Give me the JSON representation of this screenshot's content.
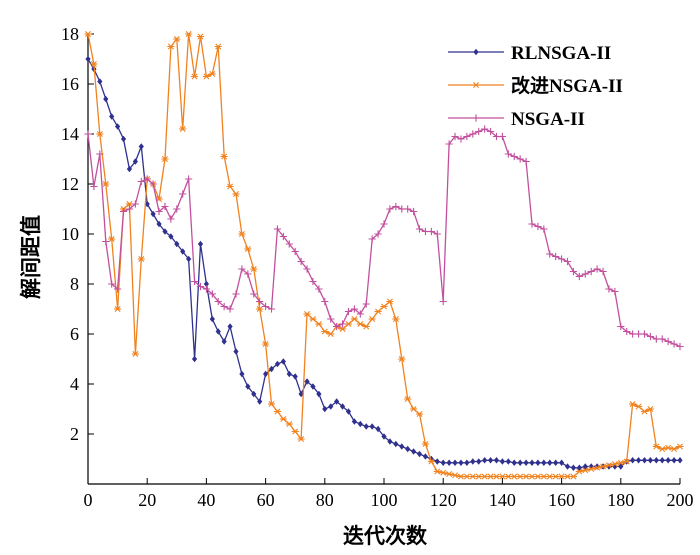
{
  "chart_data": {
    "type": "line",
    "title": "",
    "xlabel": "迭代次数",
    "ylabel": "解间距值",
    "xlim": [
      0,
      200
    ],
    "ylim": [
      0,
      18
    ],
    "xticks": [
      0,
      20,
      40,
      60,
      80,
      100,
      120,
      140,
      160,
      180,
      200
    ],
    "yticks": [
      2,
      4,
      6,
      8,
      10,
      12,
      14,
      16,
      18
    ],
    "grid": false,
    "legend_position": "top-right",
    "axis_color": "#000000",
    "x": [
      0,
      2,
      4,
      6,
      8,
      10,
      12,
      14,
      16,
      18,
      20,
      22,
      24,
      26,
      28,
      30,
      32,
      34,
      36,
      38,
      40,
      42,
      44,
      46,
      48,
      50,
      52,
      54,
      56,
      58,
      60,
      62,
      64,
      66,
      68,
      70,
      72,
      74,
      76,
      78,
      80,
      82,
      84,
      86,
      88,
      90,
      92,
      94,
      96,
      98,
      100,
      102,
      104,
      106,
      108,
      110,
      112,
      114,
      116,
      118,
      120,
      122,
      124,
      126,
      128,
      130,
      132,
      134,
      136,
      138,
      140,
      142,
      144,
      146,
      148,
      150,
      152,
      154,
      156,
      158,
      160,
      162,
      164,
      166,
      168,
      170,
      172,
      174,
      176,
      178,
      180,
      182,
      184,
      186,
      188,
      190,
      192,
      194,
      196,
      198,
      200
    ],
    "series": [
      {
        "name": "RLNSGA-II",
        "color": "#30318f",
        "marker": "diamond",
        "values": [
          17.0,
          16.6,
          16.1,
          15.4,
          14.7,
          14.3,
          13.8,
          12.6,
          12.9,
          13.5,
          11.2,
          10.8,
          10.4,
          10.1,
          9.9,
          9.6,
          9.3,
          9.0,
          5.0,
          9.6,
          8.0,
          6.6,
          6.1,
          5.7,
          6.3,
          5.3,
          4.4,
          3.9,
          3.6,
          3.3,
          4.4,
          4.6,
          4.8,
          4.9,
          4.4,
          4.3,
          3.6,
          4.1,
          3.9,
          3.6,
          3.0,
          3.1,
          3.3,
          3.1,
          2.9,
          2.5,
          2.4,
          2.3,
          2.3,
          2.2,
          1.9,
          1.7,
          1.6,
          1.5,
          1.4,
          1.3,
          1.2,
          1.1,
          1.0,
          0.9,
          0.85,
          0.85,
          0.85,
          0.85,
          0.85,
          0.9,
          0.9,
          0.95,
          0.95,
          0.95,
          0.9,
          0.9,
          0.85,
          0.85,
          0.85,
          0.85,
          0.85,
          0.85,
          0.85,
          0.85,
          0.85,
          0.7,
          0.65,
          0.65,
          0.7,
          0.7,
          0.7,
          0.7,
          0.7,
          0.7,
          0.7,
          0.9,
          0.95,
          0.95,
          0.95,
          0.95,
          0.95,
          0.95,
          0.95,
          0.95,
          0.95
        ]
      },
      {
        "name": "改进NSGA-II",
        "color": "#f0821f",
        "marker": "asterisk",
        "values": [
          18.0,
          16.8,
          14.0,
          12.0,
          9.8,
          7.0,
          11.0,
          11.2,
          5.2,
          9.0,
          12.2,
          12.0,
          11.4,
          13.0,
          17.5,
          17.8,
          14.2,
          18.0,
          16.3,
          17.9,
          16.3,
          16.4,
          17.5,
          13.1,
          11.9,
          11.6,
          10.0,
          9.4,
          8.6,
          7.0,
          5.6,
          3.2,
          2.9,
          2.6,
          2.4,
          2.1,
          1.8,
          6.8,
          6.6,
          6.4,
          6.1,
          6.0,
          6.3,
          6.2,
          6.4,
          6.6,
          6.4,
          6.3,
          6.6,
          6.9,
          7.1,
          7.3,
          6.6,
          5.0,
          3.4,
          3.0,
          2.8,
          1.6,
          0.9,
          0.5,
          0.45,
          0.4,
          0.35,
          0.3,
          0.3,
          0.3,
          0.3,
          0.3,
          0.3,
          0.3,
          0.3,
          0.3,
          0.3,
          0.3,
          0.3,
          0.3,
          0.3,
          0.3,
          0.3,
          0.3,
          0.3,
          0.3,
          0.3,
          0.5,
          0.55,
          0.6,
          0.65,
          0.7,
          0.75,
          0.8,
          0.85,
          0.9,
          3.2,
          3.1,
          2.9,
          3.0,
          1.5,
          1.4,
          1.45,
          1.4,
          1.5
        ]
      },
      {
        "name": "NSGA-II",
        "color": "#c2509e",
        "marker": "plus",
        "values": [
          14.0,
          11.9,
          13.2,
          9.7,
          8.0,
          7.8,
          10.9,
          11.0,
          11.2,
          12.1,
          12.2,
          12.0,
          10.9,
          11.1,
          10.6,
          11.0,
          11.6,
          12.2,
          8.1,
          7.9,
          7.8,
          7.6,
          7.3,
          7.1,
          7.0,
          7.6,
          8.6,
          8.4,
          7.6,
          7.3,
          7.1,
          7.0,
          10.2,
          9.9,
          9.6,
          9.3,
          8.9,
          8.6,
          8.1,
          7.8,
          7.3,
          6.6,
          6.3,
          6.4,
          6.9,
          7.0,
          6.8,
          7.2,
          9.8,
          10.0,
          10.4,
          11.0,
          11.1,
          11.0,
          11.0,
          10.9,
          10.2,
          10.1,
          10.1,
          10.0,
          7.3,
          13.6,
          13.9,
          13.8,
          13.9,
          14.0,
          14.1,
          14.2,
          14.1,
          13.9,
          13.9,
          13.2,
          13.1,
          13.0,
          12.9,
          10.4,
          10.3,
          10.2,
          9.2,
          9.1,
          9.0,
          8.9,
          8.5,
          8.3,
          8.4,
          8.5,
          8.6,
          8.5,
          7.8,
          7.7,
          6.3,
          6.1,
          6.0,
          6.0,
          6.0,
          5.9,
          5.8,
          5.8,
          5.7,
          5.6,
          5.5
        ]
      }
    ]
  }
}
